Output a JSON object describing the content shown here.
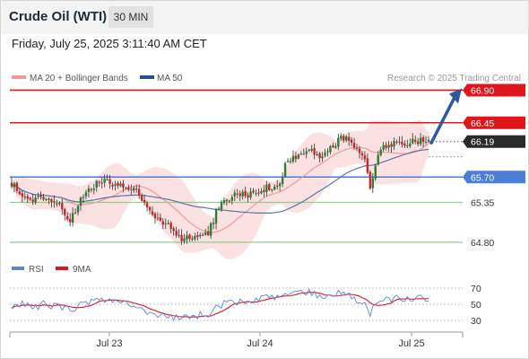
{
  "header": {
    "title": "Crude Oil (WTI)",
    "timeframe": "30 MIN",
    "datetime": "Friday, July 25, 2025 3:11:40 AM CET"
  },
  "legend": {
    "ma20": "MA 20 + Bollinger Bands",
    "ma50": "MA 50",
    "rsi": "RSI",
    "ma9": "9MA",
    "copyright": "Research © 2025 Trading Central"
  },
  "colors": {
    "resistance": "#e0161a",
    "support": "#8fd08f",
    "pivot": "#4b7fd6",
    "current": "#2a2a2a",
    "bullish": "#2e7d32",
    "bearish": "#c62828",
    "bollinger": "#fadcdc",
    "ma20": "#ef9a9a",
    "ma50": "#5677a8",
    "rsi": "#5b86d6",
    "rsi_ma": "#e0161a",
    "arrow": "#2f5a9e"
  },
  "chart_data": [
    {
      "type": "candlestick",
      "ylim": [
        64.6,
        66.98
      ],
      "x_tick_labels": [
        "Jul 23",
        "Jul 24",
        "Jul 25"
      ],
      "price_levels": [
        {
          "value": 66.9,
          "label": "66.90",
          "kind": "resistance"
        },
        {
          "value": 66.45,
          "label": "66.45",
          "kind": "resistance"
        },
        {
          "value": 66.19,
          "label": "66.19",
          "kind": "current"
        },
        {
          "value": 65.7,
          "label": "65.70",
          "kind": "pivot"
        },
        {
          "value": 65.35,
          "label": "65.35",
          "kind": "support"
        },
        {
          "value": 64.8,
          "label": "64.80",
          "kind": "support"
        }
      ],
      "target": 66.9,
      "close_anchors": [
        [
          0,
          65.62
        ],
        [
          6,
          65.36
        ],
        [
          12,
          65.44
        ],
        [
          18,
          65.33
        ],
        [
          22,
          65.08
        ],
        [
          28,
          65.52
        ],
        [
          34,
          65.65
        ],
        [
          40,
          65.6
        ],
        [
          46,
          65.55
        ],
        [
          52,
          65.2
        ],
        [
          58,
          65.05
        ],
        [
          64,
          64.85
        ],
        [
          70,
          64.88
        ],
        [
          74,
          64.92
        ],
        [
          78,
          65.3
        ],
        [
          84,
          65.45
        ],
        [
          90,
          65.47
        ],
        [
          96,
          65.55
        ],
        [
          101,
          65.6
        ],
        [
          103,
          65.9
        ],
        [
          107,
          65.98
        ],
        [
          112,
          66.08
        ],
        [
          116,
          65.95
        ],
        [
          121,
          66.15
        ],
        [
          125,
          66.25
        ],
        [
          129,
          66.1
        ],
        [
          133,
          65.9
        ],
        [
          135,
          65.55
        ],
        [
          138,
          66.05
        ],
        [
          144,
          66.18
        ],
        [
          150,
          66.17
        ],
        [
          154,
          66.21
        ],
        [
          157,
          66.19
        ]
      ],
      "candle_count": 158
    },
    {
      "type": "line",
      "ylim": [
        20,
        80
      ],
      "y_tick_labels": [
        "70",
        "50",
        "30"
      ],
      "series": [
        {
          "name": "RSI"
        },
        {
          "name": "9MA"
        }
      ],
      "rsi_anchors": [
        [
          0,
          46
        ],
        [
          4,
          52
        ],
        [
          8,
          45
        ],
        [
          12,
          50
        ],
        [
          18,
          47
        ],
        [
          22,
          43
        ],
        [
          28,
          52
        ],
        [
          34,
          56
        ],
        [
          40,
          55
        ],
        [
          46,
          50
        ],
        [
          52,
          40
        ],
        [
          58,
          36
        ],
        [
          64,
          32
        ],
        [
          70,
          36
        ],
        [
          74,
          38
        ],
        [
          78,
          49
        ],
        [
          84,
          53
        ],
        [
          90,
          55
        ],
        [
          96,
          58
        ],
        [
          101,
          58
        ],
        [
          103,
          64
        ],
        [
          107,
          63
        ],
        [
          112,
          65
        ],
        [
          116,
          60
        ],
        [
          121,
          63
        ],
        [
          125,
          64
        ],
        [
          129,
          58
        ],
        [
          133,
          48
        ],
        [
          135,
          38
        ],
        [
          138,
          55
        ],
        [
          144,
          57
        ],
        [
          150,
          56
        ],
        [
          154,
          58
        ],
        [
          157,
          57
        ]
      ]
    }
  ]
}
